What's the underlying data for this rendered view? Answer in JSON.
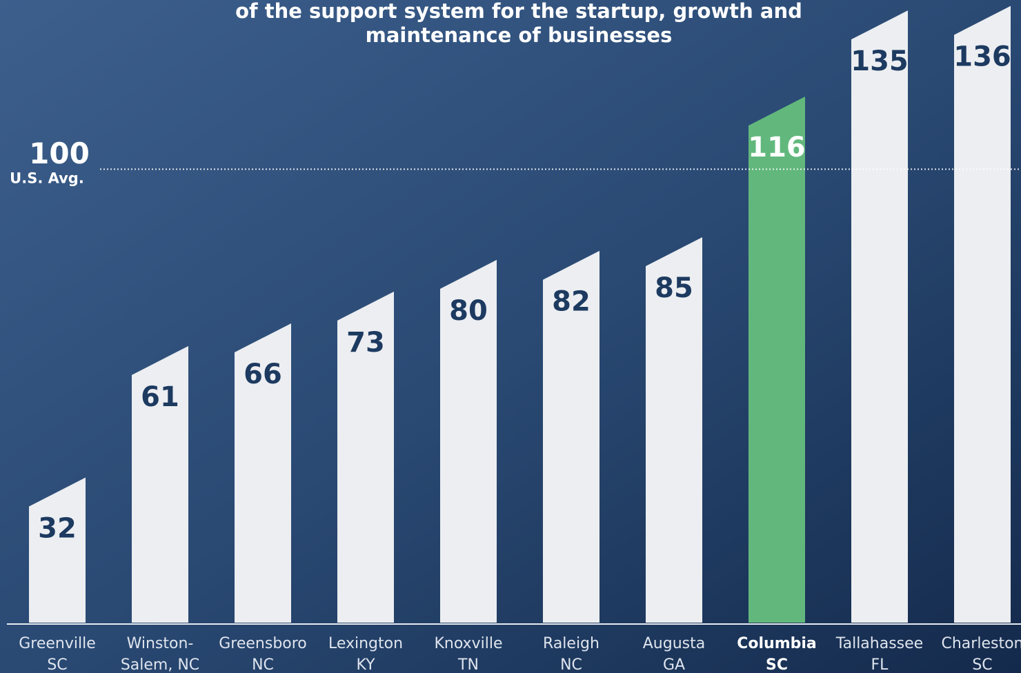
{
  "chart_data": {
    "type": "bar",
    "title_lines": [
      "of the support system for the startup, growth and",
      "maintenance of businesses"
    ],
    "categories": [
      [
        "Greenville",
        "SC"
      ],
      [
        "Winston-",
        "Salem, NC"
      ],
      [
        "Greensboro",
        "NC"
      ],
      [
        "Lexington",
        "KY"
      ],
      [
        "Knoxville",
        "TN"
      ],
      [
        "Raleigh",
        "NC"
      ],
      [
        "Augusta",
        "GA"
      ],
      [
        "Columbia",
        "SC"
      ],
      [
        "Tallahassee",
        "FL"
      ],
      [
        "Charleston",
        "SC"
      ]
    ],
    "values": [
      32,
      61,
      66,
      73,
      80,
      82,
      85,
      116,
      135,
      136
    ],
    "bar_colors": [
      "#eceef1",
      "#eceef1",
      "#eceef1",
      "#eceef1",
      "#eceef1",
      "#eceef1",
      "#eceef1",
      "#62b87c",
      "#eceef1",
      "#eceef1"
    ],
    "ylim": [
      0,
      137
    ],
    "reference": {
      "value": 100,
      "label": "U.S. Avg."
    }
  }
}
